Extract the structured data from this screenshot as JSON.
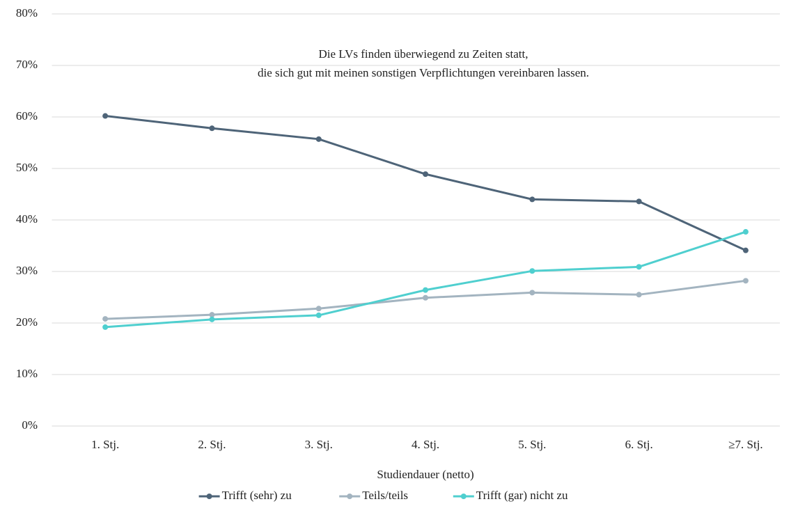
{
  "chart_data": {
    "type": "line",
    "title": [
      "Die LVs finden überwiegend zu Zeiten statt,",
      "die sich gut mit meinen sonstigen Verpflichtungen vereinbaren lassen."
    ],
    "x_label": "Studiendauer (netto)",
    "categories": [
      "1. Stj.",
      "2. Stj.",
      "3. Stj.",
      "4. Stj.",
      "5. Stj.",
      "6. Stj.",
      "≥7. Stj."
    ],
    "series": [
      {
        "name": "Trifft (sehr) zu",
        "color": "#4e6478",
        "values": [
          60.2,
          57.8,
          55.7,
          48.9,
          44.0,
          43.6,
          34.1
        ]
      },
      {
        "name": "Teils/teils",
        "color": "#a3b4c0",
        "values": [
          20.8,
          21.6,
          22.8,
          24.9,
          25.9,
          25.5,
          28.2
        ]
      },
      {
        "name": "Trifft (gar) nicht zu",
        "color": "#4fcfcf",
        "values": [
          19.2,
          20.7,
          21.5,
          26.4,
          30.1,
          30.9,
          37.7
        ]
      }
    ],
    "ylim": [
      0,
      80
    ],
    "yticks": [
      {
        "value": 0,
        "label": "0%"
      },
      {
        "value": 10,
        "label": "10%"
      },
      {
        "value": 20,
        "label": "20%"
      },
      {
        "value": 30,
        "label": "30%"
      },
      {
        "value": 40,
        "label": "40%"
      },
      {
        "value": 50,
        "label": "50%"
      },
      {
        "value": 60,
        "label": "60%"
      },
      {
        "value": 70,
        "label": "70%"
      },
      {
        "value": 80,
        "label": "80%"
      }
    ],
    "grid": true,
    "legend": "bottom"
  }
}
